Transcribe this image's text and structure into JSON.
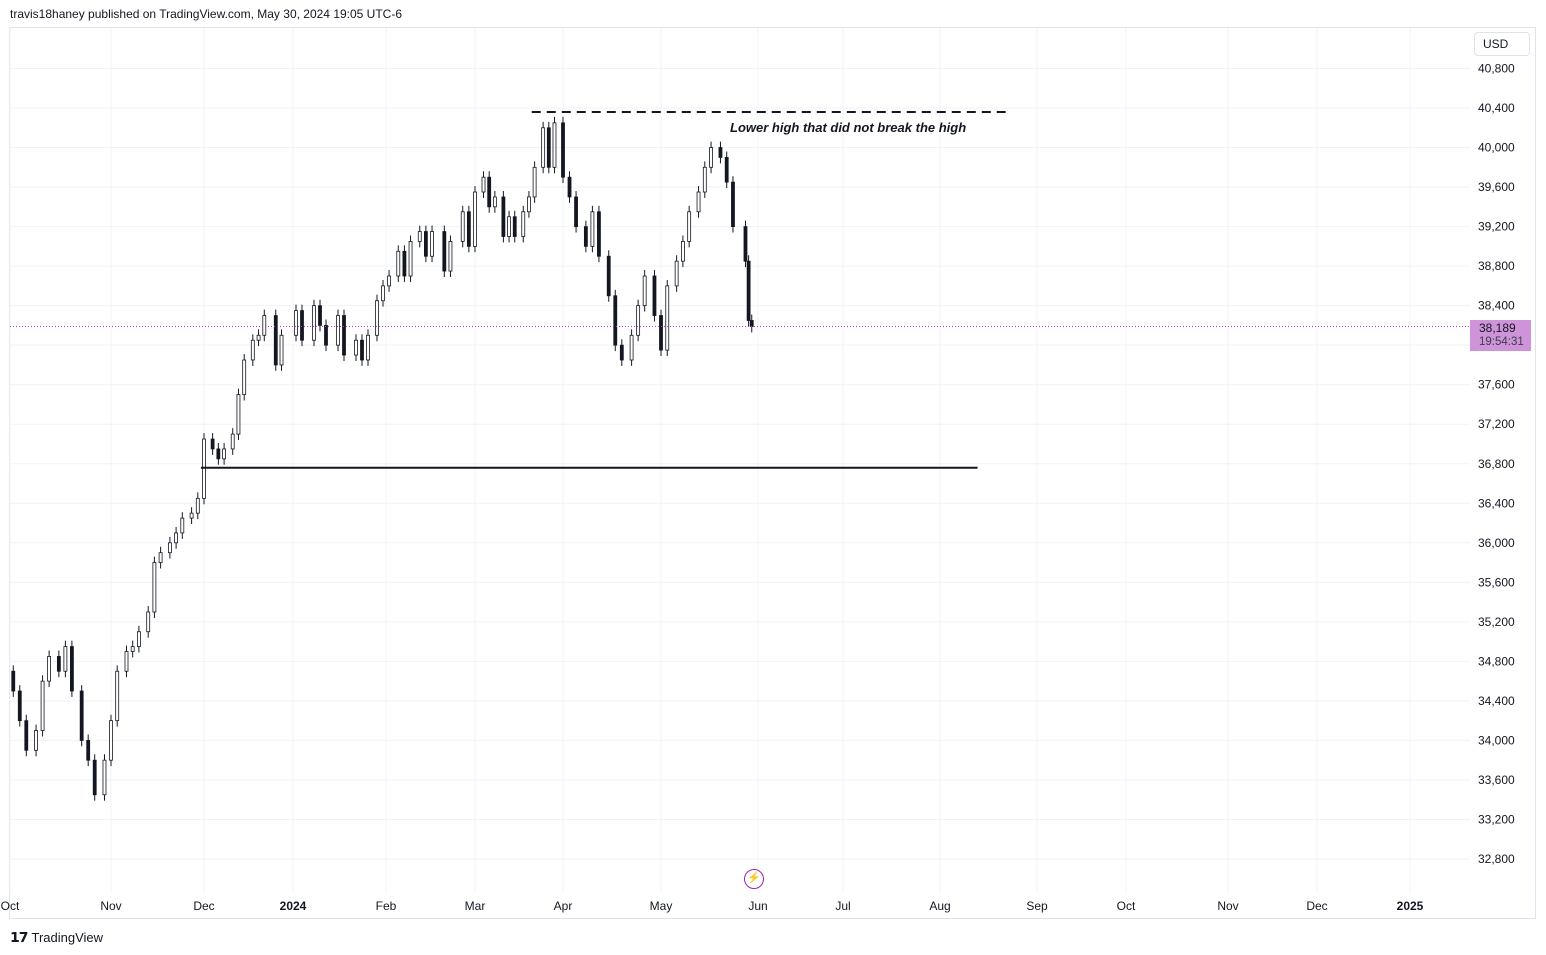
{
  "header": {
    "title": "travis18haney published on TradingView.com, May 30, 2024 19:05 UTC-6"
  },
  "footer": {
    "brand": "TradingView",
    "logo_icon": "tradingview-logo-icon"
  },
  "currency_button": {
    "label": "USD"
  },
  "last_price": {
    "value": "38,189",
    "countdown": "19:54:31",
    "color": "#ce93d8"
  },
  "annotation": {
    "text": "Lower high that did not break the high"
  },
  "event_icon": {
    "name": "lightning-bolt-icon",
    "color": "#9c27b0"
  },
  "chart_data": {
    "type": "candlestick",
    "y_axis": {
      "side": "right",
      "ticks": [
        32800,
        33200,
        33600,
        34000,
        34400,
        34800,
        35200,
        35600,
        36000,
        36400,
        36800,
        37200,
        37600,
        38000,
        38400,
        38800,
        39200,
        39600,
        40000,
        40400,
        40800
      ],
      "tick_labels": [
        "32,800",
        "33,200",
        "33,600",
        "34,000",
        "34,400",
        "34,800",
        "35,200",
        "35,600",
        "36,000",
        "36,400",
        "36,800",
        "37,200",
        "37,600",
        "38,000",
        "38,400",
        "38,800",
        "39,200",
        "39,600",
        "40,000",
        "40,400",
        "40,800"
      ],
      "ylim": [
        32600,
        41000
      ]
    },
    "x_axis": {
      "labels": [
        "Oct",
        "Nov",
        "Dec",
        "2024",
        "Feb",
        "Mar",
        "Apr",
        "May",
        "Jun",
        "Jul",
        "Aug",
        "Sep",
        "Oct",
        "Nov",
        "Dec",
        "2025"
      ],
      "dates": [
        "2023-10-01",
        "2023-11-01",
        "2023-12-01",
        "2024-01-01",
        "2024-02-01",
        "2024-03-01",
        "2024-04-01",
        "2024-05-01",
        "2024-06-01",
        "2024-07-01",
        "2024-08-01",
        "2024-09-01",
        "2024-10-01",
        "2024-11-01",
        "2024-12-01",
        "2025-01-01"
      ],
      "bold": [
        "2024",
        "2025"
      ]
    },
    "grid": true,
    "candle_colors": {
      "up": "#ffffff",
      "down": "#131722",
      "wick": "#131722"
    },
    "levels": [
      {
        "style": "solid",
        "price": 36760,
        "from": "2023-11-30",
        "to": "2024-08-13"
      },
      {
        "style": "dashed",
        "price": 40360,
        "from": "2024-03-21",
        "to": "2024-08-22"
      }
    ],
    "series_daily": [
      {
        "date": "2023-10-02",
        "open": 34700,
        "close": 34500
      },
      {
        "date": "2023-10-04",
        "open": 34500,
        "close": 34200
      },
      {
        "date": "2023-10-06",
        "open": 34200,
        "close": 33900
      },
      {
        "date": "2023-10-09",
        "open": 33900,
        "close": 34100
      },
      {
        "date": "2023-10-11",
        "open": 34100,
        "close": 34600
      },
      {
        "date": "2023-10-13",
        "open": 34600,
        "close": 34850
      },
      {
        "date": "2023-10-16",
        "open": 34850,
        "close": 34700
      },
      {
        "date": "2023-10-18",
        "open": 34700,
        "close": 34950
      },
      {
        "date": "2023-10-20",
        "open": 34950,
        "close": 34500
      },
      {
        "date": "2023-10-23",
        "open": 34500,
        "close": 34000
      },
      {
        "date": "2023-10-25",
        "open": 34000,
        "close": 33800
      },
      {
        "date": "2023-10-27",
        "open": 33800,
        "close": 33450
      },
      {
        "date": "2023-10-30",
        "open": 33450,
        "close": 33800
      },
      {
        "date": "2023-11-01",
        "open": 33800,
        "close": 34200
      },
      {
        "date": "2023-11-03",
        "open": 34200,
        "close": 34700
      },
      {
        "date": "2023-11-06",
        "open": 34700,
        "close": 34900
      },
      {
        "date": "2023-11-08",
        "open": 34900,
        "close": 34950
      },
      {
        "date": "2023-11-10",
        "open": 34950,
        "close": 35100
      },
      {
        "date": "2023-11-13",
        "open": 35100,
        "close": 35300
      },
      {
        "date": "2023-11-15",
        "open": 35300,
        "close": 35800
      },
      {
        "date": "2023-11-17",
        "open": 35800,
        "close": 35900
      },
      {
        "date": "2023-11-20",
        "open": 35900,
        "close": 36000
      },
      {
        "date": "2023-11-22",
        "open": 36000,
        "close": 36100
      },
      {
        "date": "2023-11-24",
        "open": 36100,
        "close": 36250
      },
      {
        "date": "2023-11-27",
        "open": 36250,
        "close": 36300
      },
      {
        "date": "2023-11-29",
        "open": 36300,
        "close": 36450
      },
      {
        "date": "2023-12-01",
        "open": 36450,
        "close": 37050
      },
      {
        "date": "2023-12-04",
        "open": 37050,
        "close": 36950
      },
      {
        "date": "2023-12-06",
        "open": 36950,
        "close": 36850
      },
      {
        "date": "2023-12-08",
        "open": 36850,
        "close": 36950
      },
      {
        "date": "2023-12-11",
        "open": 36950,
        "close": 37100
      },
      {
        "date": "2023-12-13",
        "open": 37100,
        "close": 37500
      },
      {
        "date": "2023-12-15",
        "open": 37500,
        "close": 37850
      },
      {
        "date": "2023-12-18",
        "open": 37850,
        "close": 38050
      },
      {
        "date": "2023-12-20",
        "open": 38050,
        "close": 38100
      },
      {
        "date": "2023-12-22",
        "open": 38100,
        "close": 38300
      },
      {
        "date": "2023-12-26",
        "open": 38300,
        "close": 37800
      },
      {
        "date": "2023-12-28",
        "open": 37800,
        "close": 38100
      },
      {
        "date": "2024-01-02",
        "open": 38100,
        "close": 38350
      },
      {
        "date": "2024-01-04",
        "open": 38350,
        "close": 38050
      },
      {
        "date": "2024-01-08",
        "open": 38050,
        "close": 38400
      },
      {
        "date": "2024-01-10",
        "open": 38400,
        "close": 38200
      },
      {
        "date": "2024-01-12",
        "open": 38200,
        "close": 38000
      },
      {
        "date": "2024-01-16",
        "open": 38000,
        "close": 38300
      },
      {
        "date": "2024-01-18",
        "open": 38300,
        "close": 37900
      },
      {
        "date": "2024-01-22",
        "open": 37900,
        "close": 38050
      },
      {
        "date": "2024-01-24",
        "open": 38050,
        "close": 37850
      },
      {
        "date": "2024-01-26",
        "open": 37850,
        "close": 38100
      },
      {
        "date": "2024-01-29",
        "open": 38100,
        "close": 38450
      },
      {
        "date": "2024-01-31",
        "open": 38450,
        "close": 38600
      },
      {
        "date": "2024-02-02",
        "open": 38600,
        "close": 38700
      },
      {
        "date": "2024-02-05",
        "open": 38700,
        "close": 38950
      },
      {
        "date": "2024-02-07",
        "open": 38950,
        "close": 38700
      },
      {
        "date": "2024-02-09",
        "open": 38700,
        "close": 39050
      },
      {
        "date": "2024-02-12",
        "open": 39050,
        "close": 39150
      },
      {
        "date": "2024-02-14",
        "open": 39150,
        "close": 38900
      },
      {
        "date": "2024-02-16",
        "open": 38900,
        "close": 39150
      },
      {
        "date": "2024-02-20",
        "open": 39150,
        "close": 38750
      },
      {
        "date": "2024-02-22",
        "open": 38750,
        "close": 39050
      },
      {
        "date": "2024-02-26",
        "open": 39050,
        "close": 39350
      },
      {
        "date": "2024-02-28",
        "open": 39350,
        "close": 39000
      },
      {
        "date": "2024-03-01",
        "open": 39000,
        "close": 39550
      },
      {
        "date": "2024-03-04",
        "open": 39550,
        "close": 39700
      },
      {
        "date": "2024-03-06",
        "open": 39700,
        "close": 39400
      },
      {
        "date": "2024-03-08",
        "open": 39400,
        "close": 39500
      },
      {
        "date": "2024-03-11",
        "open": 39500,
        "close": 39100
      },
      {
        "date": "2024-03-13",
        "open": 39100,
        "close": 39300
      },
      {
        "date": "2024-03-15",
        "open": 39300,
        "close": 39100
      },
      {
        "date": "2024-03-18",
        "open": 39100,
        "close": 39350
      },
      {
        "date": "2024-03-20",
        "open": 39350,
        "close": 39500
      },
      {
        "date": "2024-03-22",
        "open": 39500,
        "close": 39800
      },
      {
        "date": "2024-03-25",
        "open": 39800,
        "close": 40200
      },
      {
        "date": "2024-03-27",
        "open": 40200,
        "close": 39800
      },
      {
        "date": "2024-03-29",
        "open": 39800,
        "close": 40250
      },
      {
        "date": "2024-04-01",
        "open": 40250,
        "close": 39700
      },
      {
        "date": "2024-04-03",
        "open": 39700,
        "close": 39500
      },
      {
        "date": "2024-04-05",
        "open": 39500,
        "close": 39200
      },
      {
        "date": "2024-04-08",
        "open": 39200,
        "close": 39000
      },
      {
        "date": "2024-04-10",
        "open": 39000,
        "close": 39350
      },
      {
        "date": "2024-04-12",
        "open": 39350,
        "close": 38900
      },
      {
        "date": "2024-04-15",
        "open": 38900,
        "close": 38500
      },
      {
        "date": "2024-04-17",
        "open": 38500,
        "close": 38000
      },
      {
        "date": "2024-04-19",
        "open": 38000,
        "close": 37850
      },
      {
        "date": "2024-04-22",
        "open": 37850,
        "close": 38100
      },
      {
        "date": "2024-04-24",
        "open": 38100,
        "close": 38400
      },
      {
        "date": "2024-04-26",
        "open": 38400,
        "close": 38700
      },
      {
        "date": "2024-04-29",
        "open": 38700,
        "close": 38300
      },
      {
        "date": "2024-05-01",
        "open": 38300,
        "close": 37950
      },
      {
        "date": "2024-05-03",
        "open": 37950,
        "close": 38600
      },
      {
        "date": "2024-05-06",
        "open": 38600,
        "close": 38850
      },
      {
        "date": "2024-05-08",
        "open": 38850,
        "close": 39050
      },
      {
        "date": "2024-05-10",
        "open": 39050,
        "close": 39350
      },
      {
        "date": "2024-05-13",
        "open": 39350,
        "close": 39550
      },
      {
        "date": "2024-05-15",
        "open": 39550,
        "close": 39800
      },
      {
        "date": "2024-05-17",
        "open": 39800,
        "close": 40000
      },
      {
        "date": "2024-05-20",
        "open": 40000,
        "close": 39900
      },
      {
        "date": "2024-05-22",
        "open": 39900,
        "close": 39650
      },
      {
        "date": "2024-05-24",
        "open": 39650,
        "close": 39200
      },
      {
        "date": "2024-05-28",
        "open": 39200,
        "close": 38850
      },
      {
        "date": "2024-05-29",
        "open": 38850,
        "close": 38250
      },
      {
        "date": "2024-05-30",
        "open": 38250,
        "close": 38189
      }
    ]
  }
}
